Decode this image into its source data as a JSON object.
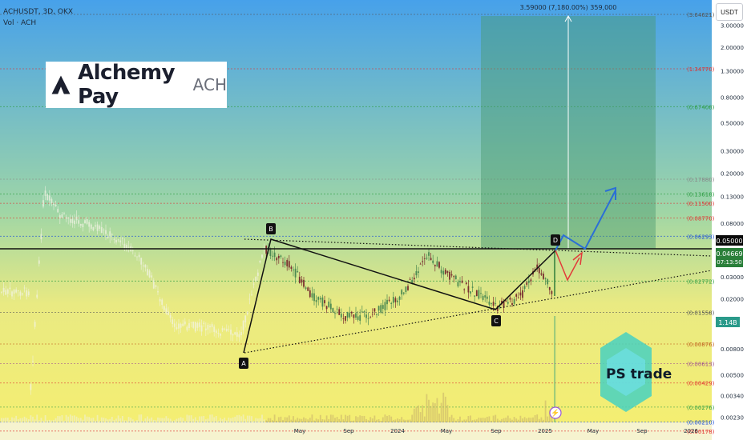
{
  "header": {
    "symbol_line": "ACHUSDT, 3D, OKX",
    "volume_line": "Vol · ACH"
  },
  "currency_button": "USDT",
  "logo": {
    "name": "Alchemy Pay",
    "ticker": "ACH"
  },
  "watermark": "PS trade",
  "target_label": "3.59000 (7,180.00%) 359,000",
  "price_axis": {
    "ticks": [
      "3.00000",
      "2.00000",
      "1.30000",
      "0.80000",
      "0.50000",
      "0.30000",
      "0.20000",
      "0.13000",
      "0.08000",
      "0.03000",
      "0.02000",
      "0.00800",
      "0.00500",
      "0.00340",
      "0.00230"
    ],
    "ticks_tint": "#1d2a3a"
  },
  "levels": [
    {
      "label": "(3.64621)",
      "color": "#555555"
    },
    {
      "label": "(1.34770)",
      "color": "#e03131"
    },
    {
      "label": "(0.67408)",
      "color": "#2f9e44"
    },
    {
      "label": "(0.17880)",
      "color": "#888888"
    },
    {
      "label": "(0.13618)",
      "color": "#2f9e44"
    },
    {
      "label": "(0.11500)",
      "color": "#e03131"
    },
    {
      "label": "(0.08770)",
      "color": "#e03131"
    },
    {
      "label": "(0.06293)",
      "color": "#1c4fd8"
    },
    {
      "label": "(0.02772)",
      "color": "#2f9e44"
    },
    {
      "label": "(0.01558)",
      "color": "#555555"
    },
    {
      "label": "(0.00876)",
      "color": "#c06020"
    },
    {
      "label": "(0.00613)",
      "color": "#a05090"
    },
    {
      "label": "(0.00429)",
      "color": "#e03131"
    },
    {
      "label": "(0.00276)",
      "color": "#2f9e44"
    },
    {
      "label": "(0.00210)",
      "color": "#1c4fd8"
    },
    {
      "label": "(0.00178)",
      "color": "#e03131"
    }
  ],
  "price_badges": {
    "current": "0.04669",
    "countdown": "07:13:50",
    "level": "0.05000",
    "volume": "1.14B"
  },
  "time_axis": [
    "May",
    "Sep",
    "2024",
    "May",
    "Sep",
    "2025",
    "May",
    "Sep",
    "2026"
  ],
  "pattern_points": [
    "A",
    "B",
    "C",
    "D"
  ],
  "colors": {
    "bg_top": "#4aa3e8",
    "bg_bottom": "#f2ee7a",
    "target_box": "#4a9a6e",
    "support": "#111111",
    "bull_arrow": "#2b6fd6",
    "bear_arrow": "#e23a3a",
    "candle_up": "#4c8a52",
    "candle_down": "#7a3030"
  }
}
